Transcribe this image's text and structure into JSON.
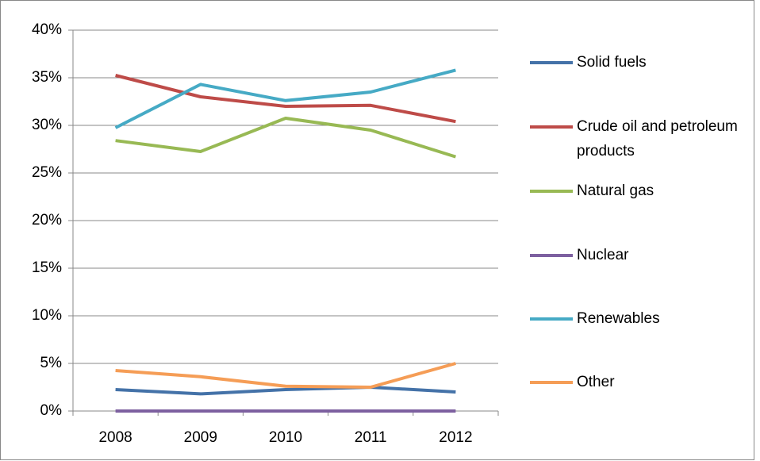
{
  "chart_data": {
    "type": "line",
    "categories": [
      "2008",
      "2009",
      "2010",
      "2011",
      "2012"
    ],
    "series": [
      {
        "name": "Solid fuels",
        "color": "#4472a8",
        "values": [
          2.25,
          1.8,
          2.25,
          2.5,
          2.0
        ]
      },
      {
        "name": "Crude oil and petroleum products",
        "color": "#be4b48",
        "values": [
          35.25,
          33.0,
          32.0,
          32.1,
          30.4
        ]
      },
      {
        "name": "Natural gas",
        "color": "#98b954",
        "values": [
          28.4,
          27.25,
          30.75,
          29.5,
          26.7
        ]
      },
      {
        "name": "Nuclear",
        "color": "#7d60a0",
        "values": [
          0,
          0,
          0,
          0,
          0
        ]
      },
      {
        "name": "Renewables",
        "color": "#46aac5",
        "values": [
          29.75,
          34.3,
          32.6,
          33.5,
          35.8
        ]
      },
      {
        "name": "Other",
        "color": "#f59d56",
        "values": [
          4.25,
          3.6,
          2.6,
          2.5,
          5.0
        ]
      }
    ],
    "ylim": [
      0,
      40
    ],
    "yticks": [
      {
        "value": 0,
        "label": "0%"
      },
      {
        "value": 5,
        "label": "5%"
      },
      {
        "value": 10,
        "label": "10%"
      },
      {
        "value": 15,
        "label": "15%"
      },
      {
        "value": 20,
        "label": "20%"
      },
      {
        "value": 25,
        "label": "25%"
      },
      {
        "value": 30,
        "label": "30%"
      },
      {
        "value": 35,
        "label": "35%"
      },
      {
        "value": 40,
        "label": "40%"
      }
    ],
    "grid": true,
    "legend": "right"
  }
}
